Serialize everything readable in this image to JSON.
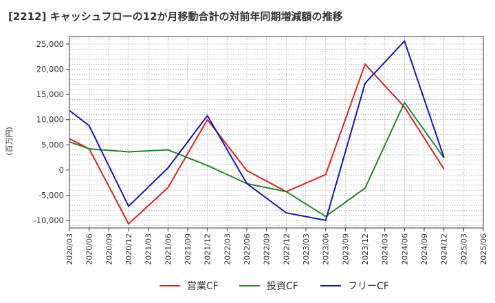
{
  "chart_data": {
    "type": "line",
    "title": "[2212]  キャッシュフローの12か月移動合計の対前年同期増減額の推移",
    "ylabel": "(百万円)",
    "xlabel": "",
    "ylim": [
      -11500,
      26500
    ],
    "yticks": [
      -10000,
      -5000,
      0,
      5000,
      10000,
      15000,
      20000,
      25000
    ],
    "ytick_labels": [
      "-10,000",
      "-5,000",
      "0",
      "5,000",
      "10,000",
      "15,000",
      "20,000",
      "25,000"
    ],
    "x": [
      "2020/03",
      "2020/06",
      "2020/09",
      "2020/12",
      "2021/03",
      "2021/06",
      "2021/09",
      "2021/12",
      "2022/03",
      "2022/06",
      "2022/09",
      "2022/12",
      "2023/03",
      "2023/06",
      "2023/09",
      "2023/12",
      "2024/03",
      "2024/06",
      "2024/09",
      "2024/12",
      "2025/03",
      "2025/06"
    ],
    "grid": true,
    "legend_position": "bottom",
    "series": [
      {
        "name": "営業CF",
        "color": "#dd2222",
        "values": [
          6200,
          4200,
          null,
          -10700,
          null,
          -3500,
          null,
          10000,
          null,
          -100,
          null,
          -4300,
          null,
          -900,
          null,
          21000,
          null,
          12500,
          null,
          200,
          null,
          null
        ]
      },
      {
        "name": "投資CF",
        "color": "#228822",
        "values": [
          5600,
          4200,
          null,
          3600,
          null,
          4000,
          null,
          900,
          null,
          -2700,
          null,
          -4300,
          null,
          -9200,
          null,
          -3600,
          null,
          13400,
          null,
          2400,
          null,
          null
        ]
      },
      {
        "name": "フリーCF",
        "color": "#1111cc",
        "values": [
          11800,
          8800,
          null,
          -7200,
          null,
          400,
          null,
          10800,
          null,
          -2700,
          null,
          -8500,
          null,
          -10000,
          null,
          17200,
          null,
          25600,
          null,
          2500,
          null,
          null
        ]
      }
    ]
  }
}
